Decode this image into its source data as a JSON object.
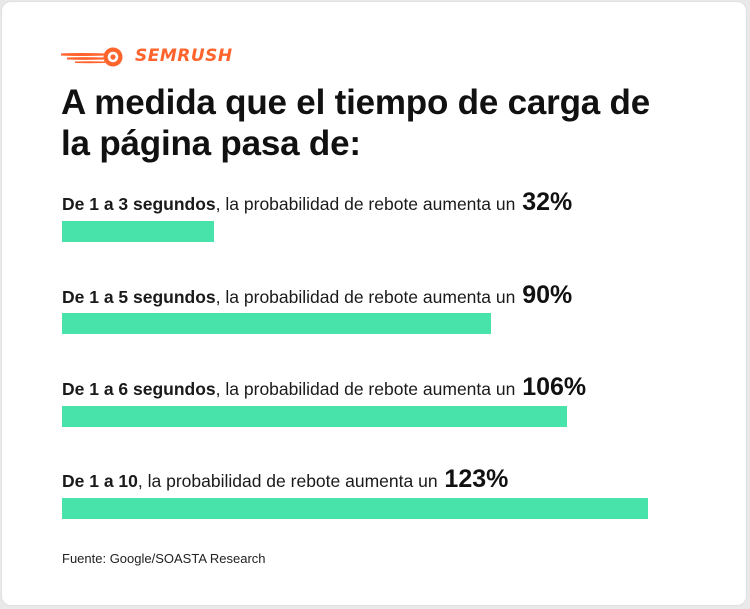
{
  "brand": {
    "name": "SEMRUSH",
    "logo_color": "#ff642d",
    "icon": "semrush-flame-icon"
  },
  "title": "A medida que el tiempo de carga de la página pasa de:",
  "source": "Fuente: Google/SOASTA Research",
  "bar_color": "#47e3aa",
  "chart_data": {
    "type": "bar",
    "orientation": "horizontal",
    "title": "A medida que el tiempo de carga de la página pasa de:",
    "categories": [
      "De 1 a 3 segundos",
      "De 1 a 5 segundos",
      "De 1 a 6 segundos",
      "De 1 a 10"
    ],
    "values": [
      32,
      90,
      106,
      123
    ],
    "value_labels": [
      "32%",
      "90%",
      "106%",
      "123%"
    ],
    "label_suffix": ", la probabilidad de rebote aumenta un ",
    "grid": false,
    "legend": "none"
  }
}
